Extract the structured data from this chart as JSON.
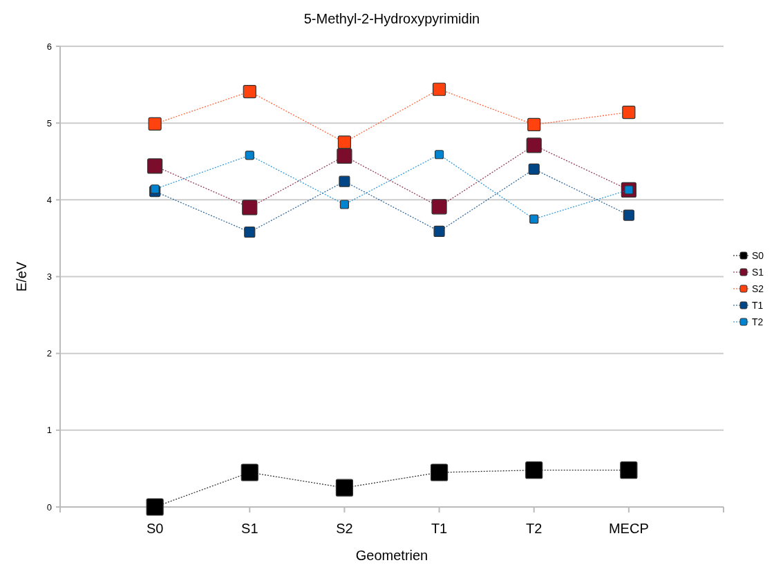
{
  "chart_data": {
    "type": "line",
    "title": "5-Methyl-2-Hydroxypyrimidin",
    "xlabel": "Geometrien",
    "ylabel": "E/eV",
    "categories": [
      null,
      "S0",
      "S1",
      "S2",
      "T1",
      "T2",
      "MECP",
      null
    ],
    "series": [
      {
        "name": "S0",
        "color": "#000000",
        "values": [
          null,
          0,
          0.45,
          0.25,
          0.45,
          0.48,
          0.48,
          null
        ]
      },
      {
        "name": "S1",
        "color": "#7b0c2c",
        "values": [
          null,
          4.44,
          3.9,
          4.57,
          3.91,
          4.71,
          4.13,
          null
        ]
      },
      {
        "name": "S2",
        "color": "#ff420e",
        "values": [
          null,
          4.99,
          5.41,
          4.75,
          5.44,
          4.98,
          5.14,
          null
        ]
      },
      {
        "name": "T1",
        "color": "#004586",
        "values": [
          null,
          4.11,
          3.58,
          4.24,
          3.59,
          4.4,
          3.8,
          null
        ]
      },
      {
        "name": "T2",
        "color": "#0084d1",
        "values": [
          null,
          4.14,
          4.58,
          3.94,
          4.59,
          3.75,
          4.13,
          null
        ]
      }
    ],
    "ylim": [
      0,
      6
    ],
    "yticks": [
      0,
      1,
      2,
      3,
      4,
      5,
      6
    ],
    "grid": "y",
    "legend": "right",
    "marker": "square",
    "line_style": "dotted"
  }
}
